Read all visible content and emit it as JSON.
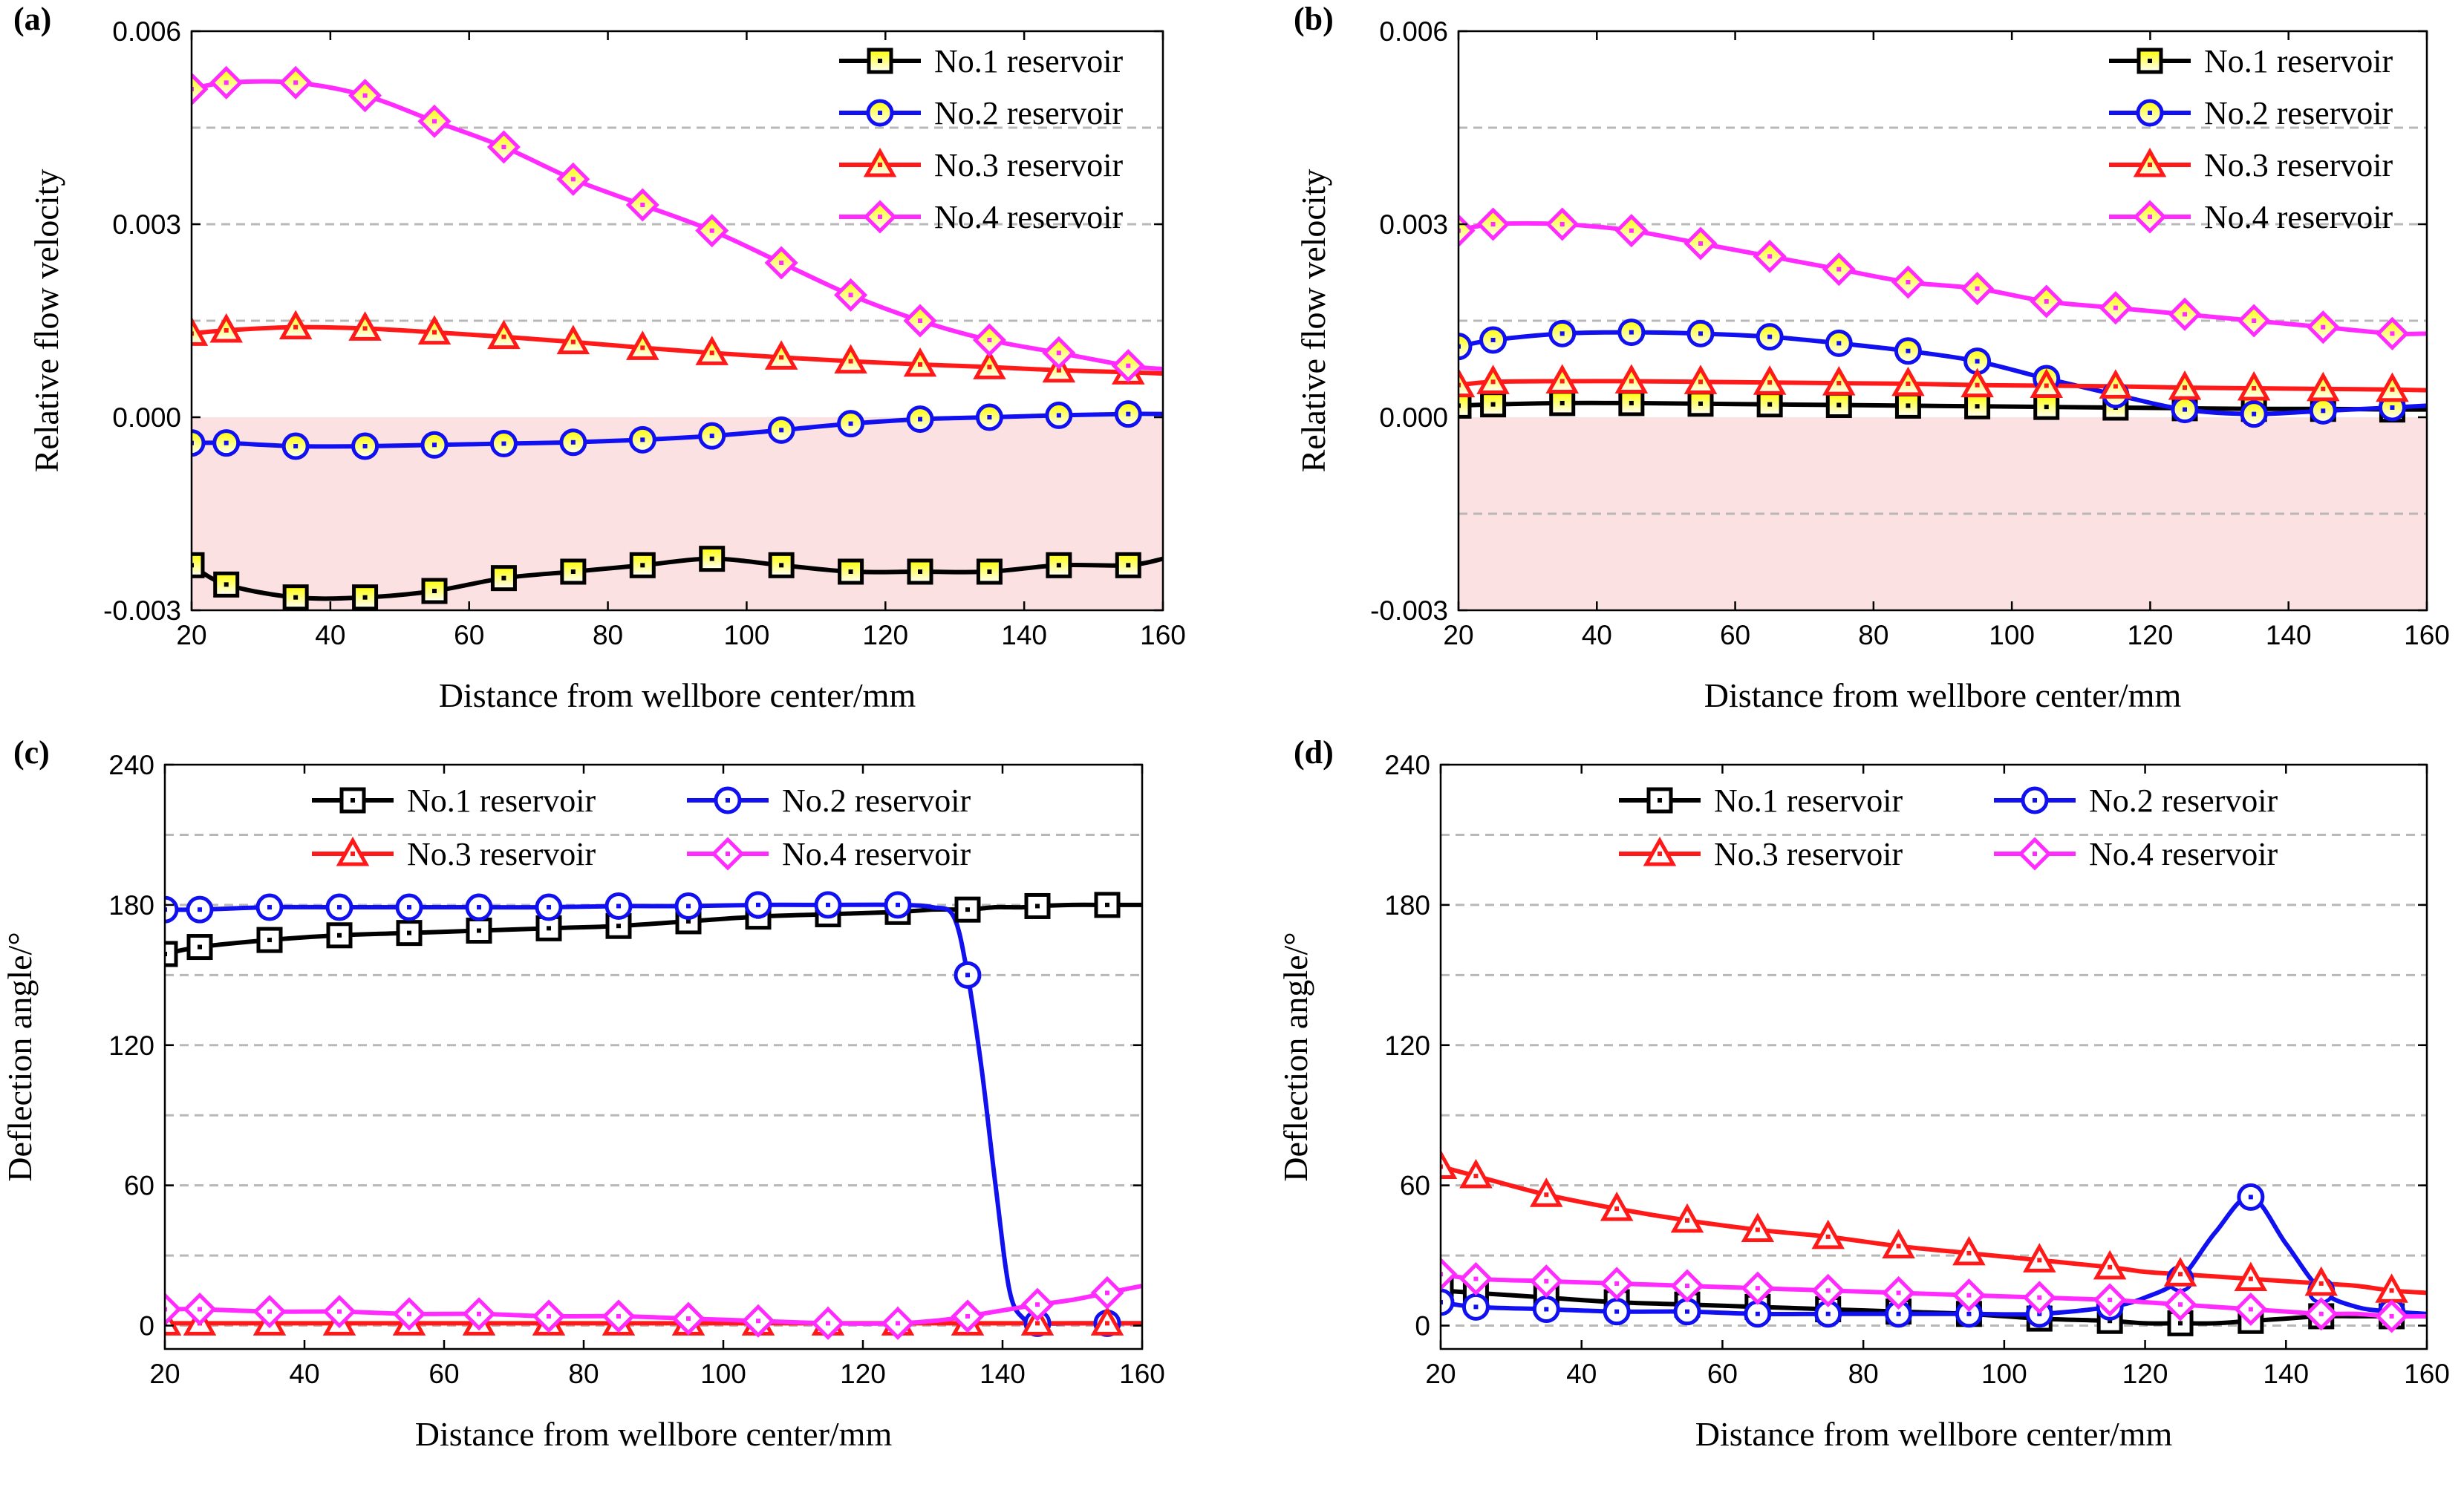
{
  "colors": {
    "No.1": "#000000",
    "No.2": "#1010f0",
    "No.3": "#ff1a1a",
    "No.4": "#ff2bff",
    "marker_fill_top": "#ffff00",
    "marker_fill_bottom": "#ffffff",
    "negative_region": "#fbe1e1"
  },
  "chart_data": [
    {
      "id": "a",
      "panel_label": "(a)",
      "type": "line",
      "xlabel": "Distance from wellbore center/mm",
      "ylabel": "Relative flow velocity",
      "xlim": [
        20,
        160
      ],
      "ylim": [
        -0.003,
        0.006
      ],
      "xticks": [
        20,
        40,
        60,
        80,
        100,
        120,
        140,
        160
      ],
      "yticks": [
        -0.003,
        0.0,
        0.003,
        0.006
      ],
      "ytick_labels": [
        "-0.003",
        "0.000",
        "0.003",
        "0.006"
      ],
      "ygrid": [
        0.0015,
        0.003,
        0.0045
      ],
      "negative_shading": true,
      "legend_layout": "column",
      "x": [
        20,
        25,
        35,
        45,
        55,
        65,
        75,
        85,
        95,
        105,
        115,
        125,
        135,
        145,
        155,
        160
      ],
      "series": [
        {
          "key": "No.1",
          "name": "No.1 reservoir",
          "marker": "square",
          "values": [
            -0.0023,
            -0.0026,
            -0.0028,
            -0.0028,
            -0.0027,
            -0.0025,
            -0.0024,
            -0.0023,
            -0.0022,
            -0.0023,
            -0.0024,
            -0.0024,
            -0.0024,
            -0.0023,
            -0.0023,
            -0.0022
          ]
        },
        {
          "key": "No.2",
          "name": "No.2 reservoir",
          "marker": "circle",
          "values": [
            -0.0004,
            -0.0004,
            -0.00045,
            -0.00045,
            -0.00043,
            -0.00041,
            -0.00039,
            -0.00035,
            -0.00029,
            -0.0002,
            -0.0001,
            -3e-05,
            0.0,
            3e-05,
            5e-05,
            5e-05
          ]
        },
        {
          "key": "No.3",
          "name": "No.3 reservoir",
          "marker": "triangle",
          "values": [
            0.0013,
            0.00135,
            0.0014,
            0.00138,
            0.00132,
            0.00125,
            0.00117,
            0.00108,
            0.001,
            0.00093,
            0.00087,
            0.00082,
            0.00078,
            0.00073,
            0.0007,
            0.00068
          ]
        },
        {
          "key": "No.4",
          "name": "No.4 reservoir",
          "marker": "diamond",
          "values": [
            0.0051,
            0.0052,
            0.0052,
            0.005,
            0.0046,
            0.0042,
            0.0037,
            0.0033,
            0.0029,
            0.0024,
            0.0019,
            0.0015,
            0.0012,
            0.001,
            0.0008,
            0.00075
          ]
        }
      ]
    },
    {
      "id": "b",
      "panel_label": "(b)",
      "type": "line",
      "xlabel": "Distance from wellbore center/mm",
      "ylabel": "Relative flow velocity",
      "xlim": [
        20,
        160
      ],
      "ylim": [
        -0.003,
        0.006
      ],
      "xticks": [
        20,
        40,
        60,
        80,
        100,
        120,
        140,
        160
      ],
      "yticks": [
        -0.003,
        0.0,
        0.003,
        0.006
      ],
      "ytick_labels": [
        "-0.003",
        "0.000",
        "0.003",
        "0.006"
      ],
      "ygrid": [
        -0.0015,
        0.0015,
        0.003,
        0.0045
      ],
      "negative_shading": true,
      "legend_layout": "column",
      "x": [
        20,
        25,
        35,
        45,
        55,
        65,
        75,
        85,
        95,
        105,
        115,
        125,
        135,
        145,
        155,
        160
      ],
      "series": [
        {
          "key": "No.1",
          "name": "No.1 reservoir",
          "marker": "square",
          "values": [
            0.00018,
            0.0002,
            0.00022,
            0.00022,
            0.00021,
            0.0002,
            0.00019,
            0.00018,
            0.00017,
            0.00016,
            0.00015,
            0.00014,
            0.00013,
            0.00013,
            0.00012,
            0.00012
          ]
        },
        {
          "key": "No.2",
          "name": "No.2 reservoir",
          "marker": "circle",
          "values": [
            0.0011,
            0.0012,
            0.0013,
            0.00132,
            0.0013,
            0.00125,
            0.00115,
            0.00103,
            0.00087,
            0.0006,
            0.00035,
            0.00012,
            5e-05,
            0.0001,
            0.00015,
            0.00018
          ]
        },
        {
          "key": "No.3",
          "name": "No.3 reservoir",
          "marker": "triangle",
          "values": [
            0.0005,
            0.00055,
            0.00056,
            0.00056,
            0.00055,
            0.00054,
            0.00053,
            0.00052,
            0.0005,
            0.00049,
            0.00048,
            0.00046,
            0.00045,
            0.00044,
            0.00043,
            0.00042
          ]
        },
        {
          "key": "No.4",
          "name": "No.4 reservoir",
          "marker": "diamond",
          "values": [
            0.0029,
            0.003,
            0.003,
            0.0029,
            0.0027,
            0.0025,
            0.0023,
            0.0021,
            0.002,
            0.0018,
            0.0017,
            0.0016,
            0.0015,
            0.0014,
            0.0013,
            0.0013
          ]
        }
      ]
    },
    {
      "id": "c",
      "panel_label": "(c)",
      "type": "line",
      "xlabel": "Distance from wellbore center/mm",
      "ylabel": "Deflection angle/°",
      "xlim": [
        20,
        160
      ],
      "ylim": [
        -10,
        240
      ],
      "xticks": [
        20,
        40,
        60,
        80,
        100,
        120,
        140,
        160
      ],
      "yticks": [
        0,
        60,
        120,
        180,
        240
      ],
      "ytick_labels": [
        "0",
        "60",
        "120",
        "180",
        "240"
      ],
      "ygrid": [
        0,
        30,
        60,
        90,
        120,
        150,
        180,
        210
      ],
      "negative_shading": false,
      "legend_layout": "grid",
      "x": [
        20,
        25,
        35,
        45,
        55,
        65,
        75,
        85,
        95,
        105,
        115,
        125,
        130,
        133,
        135,
        137,
        139,
        141,
        143,
        145,
        150,
        155,
        160
      ],
      "series": [
        {
          "key": "No.1",
          "name": "No.1 reservoir",
          "marker": "square",
          "values": [
            159,
            162,
            165,
            167,
            168,
            169,
            170,
            171,
            173,
            175,
            176,
            177,
            178,
            178,
            178,
            178.5,
            179,
            179,
            179,
            179.5,
            180,
            180,
            180
          ]
        },
        {
          "key": "No.2",
          "name": "No.2 reservoir",
          "marker": "circle",
          "values": [
            178,
            178,
            179,
            179,
            179,
            179,
            179,
            179.5,
            179.5,
            180,
            180,
            180,
            179,
            175,
            150,
            110,
            60,
            15,
            3,
            1,
            1,
            1,
            1
          ]
        },
        {
          "key": "No.3",
          "name": "No.3 reservoir",
          "marker": "triangle",
          "values": [
            1,
            1,
            1,
            1,
            1,
            1,
            1,
            1,
            1,
            1,
            1,
            1,
            1,
            1,
            1,
            1,
            1,
            1,
            1,
            1,
            1,
            1,
            1
          ]
        },
        {
          "key": "No.4",
          "name": "No.4 reservoir",
          "marker": "diamond",
          "values": [
            7,
            7,
            6,
            6,
            5,
            5,
            4,
            4,
            3,
            2,
            1,
            1,
            2,
            3,
            4,
            5,
            6,
            7,
            8,
            9,
            11,
            14,
            17
          ]
        }
      ]
    },
    {
      "id": "d",
      "panel_label": "(d)",
      "type": "line",
      "xlabel": "Distance from wellbore center/mm",
      "ylabel": "Deflection angle/°",
      "xlim": [
        20,
        160
      ],
      "ylim": [
        -10,
        240
      ],
      "xticks": [
        20,
        40,
        60,
        80,
        100,
        120,
        140,
        160
      ],
      "yticks": [
        0,
        60,
        120,
        180,
        240
      ],
      "ytick_labels": [
        "0",
        "60",
        "120",
        "180",
        "240"
      ],
      "ygrid": [
        0,
        30,
        60,
        90,
        120,
        150,
        180,
        210
      ],
      "negative_shading": false,
      "legend_layout": "grid",
      "x": [
        20,
        25,
        35,
        45,
        55,
        65,
        75,
        85,
        95,
        105,
        115,
        120,
        125,
        130,
        135,
        140,
        145,
        150,
        155,
        160
      ],
      "series": [
        {
          "key": "No.1",
          "name": "No.1 reservoir",
          "marker": "square",
          "values": [
            15,
            14,
            12,
            10,
            9,
            8,
            7,
            6,
            5,
            3,
            2,
            1,
            1,
            1,
            2,
            3,
            4,
            4,
            4,
            4
          ]
        },
        {
          "key": "No.2",
          "name": "No.2 reservoir",
          "marker": "circle",
          "values": [
            10,
            8,
            7,
            6,
            6,
            5,
            5,
            5,
            5,
            5,
            8,
            12,
            20,
            40,
            55,
            35,
            15,
            8,
            6,
            5
          ]
        },
        {
          "key": "No.3",
          "name": "No.3 reservoir",
          "marker": "triangle",
          "values": [
            68,
            64,
            56,
            50,
            45,
            41,
            38,
            34,
            31,
            28,
            25,
            23,
            22,
            21,
            20,
            19,
            18,
            17,
            15,
            14
          ]
        },
        {
          "key": "No.4",
          "name": "No.4 reservoir",
          "marker": "diamond",
          "values": [
            22,
            20,
            19,
            18,
            17,
            16,
            15,
            14,
            13,
            12,
            11,
            10,
            9,
            8,
            7,
            6,
            5,
            5,
            4,
            4
          ]
        }
      ]
    }
  ]
}
